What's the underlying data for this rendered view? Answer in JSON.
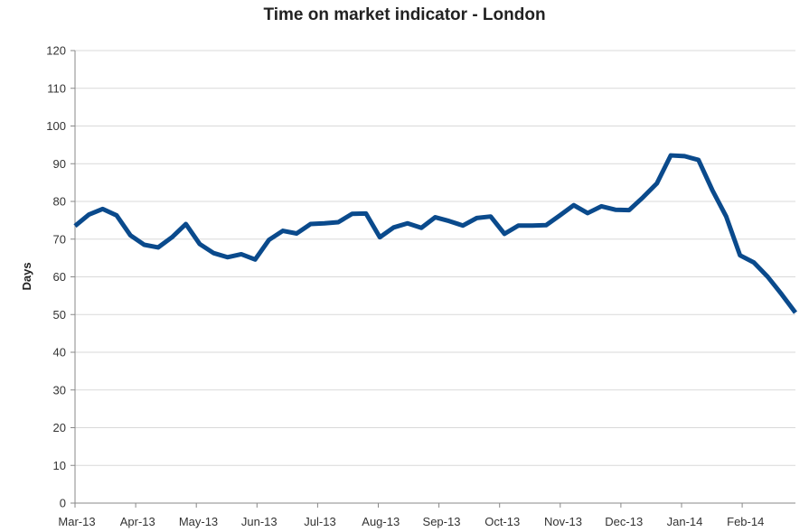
{
  "chart_data": {
    "type": "line",
    "title": "Time on market indicator - London",
    "xlabel": "",
    "ylabel": "Days",
    "ylim": [
      0,
      120
    ],
    "yticks": [
      0,
      10,
      20,
      30,
      40,
      50,
      60,
      70,
      80,
      90,
      100,
      110,
      120
    ],
    "grid": "horizontal",
    "x_tick_labels": [
      "Mar-13",
      "Apr-13",
      "May-13",
      "Jun-13",
      "Jul-13",
      "Aug-13",
      "Sep-13",
      "Oct-13",
      "Nov-13",
      "Dec-13",
      "Jan-14",
      "Feb-14"
    ],
    "series": [
      {
        "color": "#0a4a8c",
        "values": [
          73.5,
          76.5,
          78,
          76.3,
          71,
          68.5,
          67.8,
          70.5,
          74,
          68.7,
          66.3,
          65.2,
          66,
          64.6,
          69.8,
          72.2,
          71.5,
          74,
          74.2,
          74.5,
          76.7,
          76.8,
          70.5,
          73.1,
          74.2,
          73,
          75.8,
          74.8,
          73.6,
          75.6,
          76,
          71.4,
          73.6,
          73.6,
          73.7,
          76.3,
          79,
          76.9,
          78.7,
          77.8,
          77.7,
          81.1,
          84.8,
          92.2,
          92,
          91,
          83,
          76,
          65.7,
          63.8,
          60,
          55.4,
          50.5
        ]
      }
    ]
  }
}
